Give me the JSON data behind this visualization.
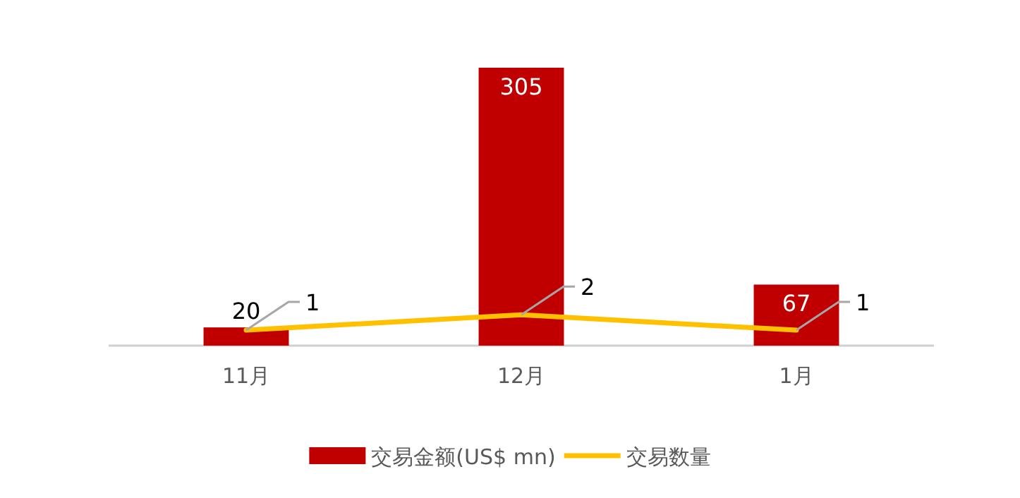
{
  "chart_data": {
    "type": "bar",
    "categories": [
      "11月",
      "12月",
      "1月"
    ],
    "series": [
      {
        "name": "交易金额(US$ mn)",
        "color": "#c00000",
        "values": [
          20,
          305,
          67
        ]
      },
      {
        "name": "交易数量",
        "type": "line",
        "axis": "y2",
        "color": "#ffc000",
        "values": [
          1,
          2,
          1
        ]
      }
    ],
    "data_labels": true,
    "legend": "bottom",
    "tick_labels": "x"
  }
}
